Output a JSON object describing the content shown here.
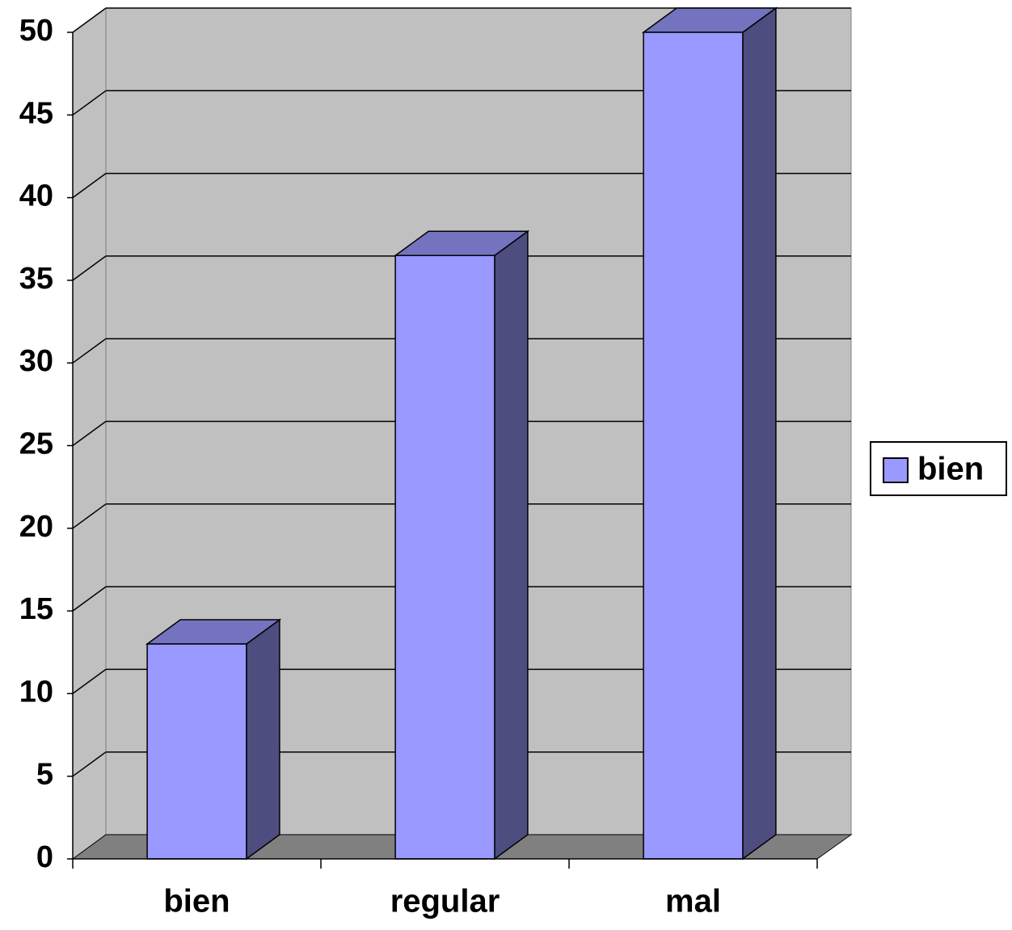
{
  "chart_data": {
    "type": "bar3d",
    "categories": [
      "bien",
      "regular",
      "mal"
    ],
    "series": [
      {
        "name": "bien",
        "color": "#9999ff",
        "values": [
          13,
          36.5,
          50
        ]
      }
    ],
    "ylim": [
      0,
      50
    ],
    "yticks": [
      0,
      5,
      10,
      15,
      20,
      25,
      30,
      35,
      40,
      45,
      50
    ],
    "grid": true,
    "legend": "right"
  }
}
